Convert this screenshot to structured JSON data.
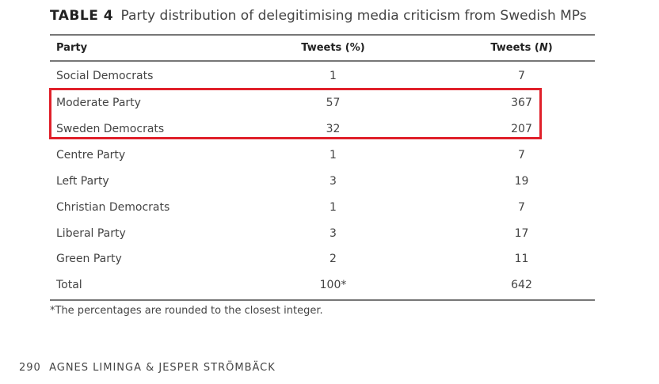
{
  "title": {
    "label": "TABLE 4",
    "text": "Party distribution of delegitimising media criticism from Swedish MPs"
  },
  "columns": [
    "Party",
    "Tweets (%)",
    "Tweets (",
    "N",
    ")"
  ],
  "rows": [
    {
      "party": "Social Democrats",
      "pct": "1",
      "n": "7"
    },
    {
      "party": "Moderate Party",
      "pct": "57",
      "n": "367"
    },
    {
      "party": "Sweden Democrats",
      "pct": "32",
      "n": "207"
    },
    {
      "party": "Centre Party",
      "pct": "1",
      "n": "7"
    },
    {
      "party": "Left Party",
      "pct": "3",
      "n": "19"
    },
    {
      "party": "Christian Democrats",
      "pct": "1",
      "n": "7"
    },
    {
      "party": "Liberal Party",
      "pct": "3",
      "n": "17"
    },
    {
      "party": "Green Party",
      "pct": "2",
      "n": "11"
    },
    {
      "party": "Total",
      "pct": "100*",
      "n": "642"
    }
  ],
  "footnote": "*The percentages are rounded to the closest integer.",
  "footer": {
    "page": "290",
    "authors": "AGNES LIMINGA & JESPER STRÖMBÄCK"
  },
  "highlight_color": "#e0202a"
}
